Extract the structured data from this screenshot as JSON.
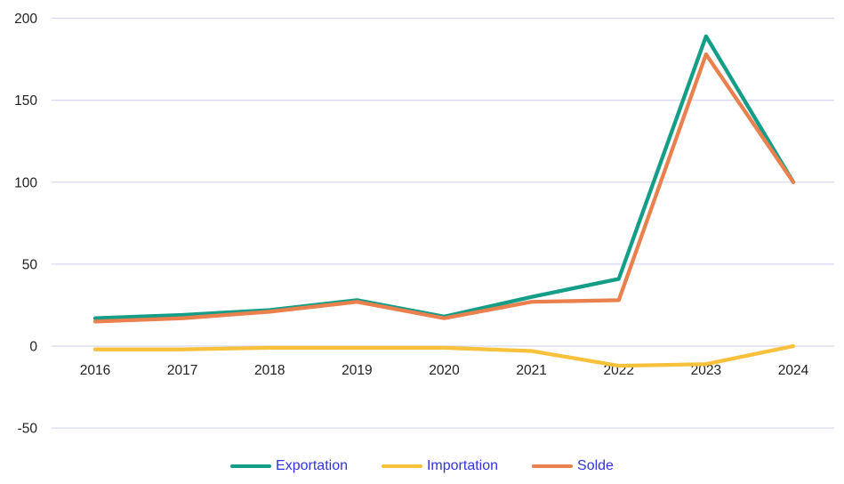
{
  "chart_data": {
    "type": "line",
    "categories": [
      "2016",
      "2017",
      "2018",
      "2019",
      "2020",
      "2021",
      "2022",
      "2023",
      "2024"
    ],
    "series": [
      {
        "name": "Exportation",
        "color": "#149D87",
        "values": [
          17,
          19,
          22,
          28,
          18,
          30,
          41,
          189,
          100
        ]
      },
      {
        "name": "Importation",
        "color": "#F7C13C",
        "values": [
          -2,
          -2,
          -1,
          -1,
          -1,
          -3,
          -12,
          -11,
          0
        ]
      },
      {
        "name": "Solde",
        "color": "#E9804D",
        "values": [
          15,
          17,
          21,
          27,
          17,
          27,
          28,
          178,
          100
        ]
      }
    ],
    "title": "",
    "xlabel": "",
    "ylabel": "",
    "ylim": [
      -50,
      200
    ],
    "yticks": [
      200,
      150,
      100,
      50,
      0,
      -50
    ],
    "grid": true,
    "legend_position": "bottom"
  },
  "styles": {
    "grid_color": "#D8D8F2",
    "axis_text_color": "#1F1F1F",
    "legend_text_color": "#3232E0",
    "background": "#FFFFFF"
  }
}
